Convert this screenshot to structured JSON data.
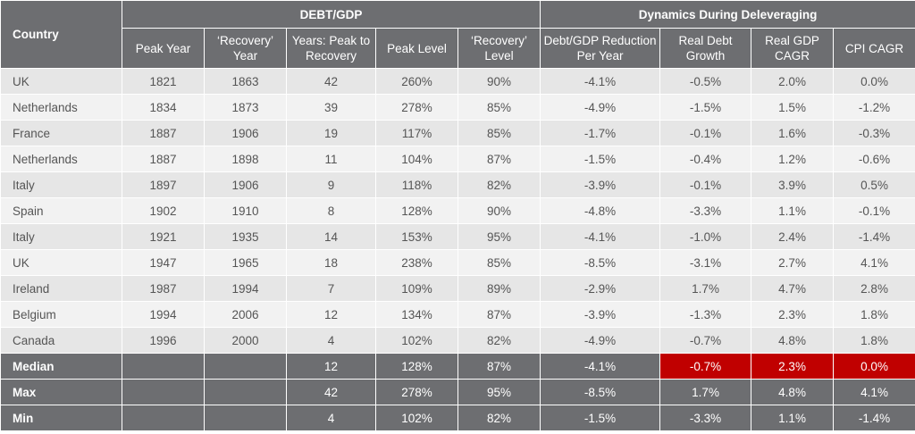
{
  "header": {
    "country": "Country",
    "debt_gdp": "DEBT/GDP",
    "dynamics": "Dynamics During Deleveraging",
    "peak_year": "Peak Year",
    "recovery_year": [
      "‘Recovery’",
      "Year"
    ],
    "years_peak_to_recovery": [
      "Years: Peak to",
      "Recovery"
    ],
    "peak_level": "Peak Level",
    "recovery_level": [
      "‘Recovery’",
      "Level"
    ],
    "debt_gdp_reduction": [
      "Debt/GDP Reduction",
      "Per Year"
    ],
    "real_debt_growth": [
      "Real Debt",
      "Growth"
    ],
    "real_gdp_cagr": [
      "Real GDP",
      "CAGR"
    ],
    "cpi_cagr": "CPI CAGR"
  },
  "rows": [
    [
      "UK",
      "1821",
      "1863",
      "42",
      "260%",
      "90%",
      "-4.1%",
      "-0.5%",
      "2.0%",
      "0.0%"
    ],
    [
      "Netherlands",
      "1834",
      "1873",
      "39",
      "278%",
      "85%",
      "-4.9%",
      "-1.5%",
      "1.5%",
      "-1.2%"
    ],
    [
      "France",
      "1887",
      "1906",
      "19",
      "117%",
      "85%",
      "-1.7%",
      "-0.1%",
      "1.6%",
      "-0.3%"
    ],
    [
      "Netherlands",
      "1887",
      "1898",
      "11",
      "104%",
      "87%",
      "-1.5%",
      "-0.4%",
      "1.2%",
      "-0.6%"
    ],
    [
      "Italy",
      "1897",
      "1906",
      "9",
      "118%",
      "82%",
      "-3.9%",
      "-0.1%",
      "3.9%",
      "0.5%"
    ],
    [
      "Spain",
      "1902",
      "1910",
      "8",
      "128%",
      "90%",
      "-4.8%",
      "-3.3%",
      "1.1%",
      "-0.1%"
    ],
    [
      "Italy",
      "1921",
      "1935",
      "14",
      "153%",
      "95%",
      "-4.1%",
      "-1.0%",
      "2.4%",
      "-1.4%"
    ],
    [
      "UK",
      "1947",
      "1965",
      "18",
      "238%",
      "85%",
      "-8.5%",
      "-3.1%",
      "2.7%",
      "4.1%"
    ],
    [
      "Ireland",
      "1987",
      "1994",
      "7",
      "109%",
      "89%",
      "-2.9%",
      "1.7%",
      "4.7%",
      "2.8%"
    ],
    [
      "Belgium",
      "1994",
      "2006",
      "12",
      "134%",
      "87%",
      "-3.9%",
      "-1.3%",
      "2.3%",
      "1.8%"
    ],
    [
      "Canada",
      "1996",
      "2000",
      "4",
      "102%",
      "82%",
      "-4.9%",
      "-0.7%",
      "4.8%",
      "1.8%"
    ]
  ],
  "summary": [
    [
      "Median",
      "",
      "",
      "12",
      "128%",
      "87%",
      "-4.1%",
      "-0.7%",
      "2.3%",
      "0.0%"
    ],
    [
      "Max",
      "",
      "",
      "42",
      "278%",
      "95%",
      "-8.5%",
      "1.7%",
      "4.8%",
      "4.1%"
    ],
    [
      "Min",
      "",
      "",
      "4",
      "102%",
      "82%",
      "-1.5%",
      "-3.3%",
      "1.1%",
      "-1.4%"
    ]
  ],
  "colors": {
    "header_bg": "#6d6e71",
    "row_odd_bg": "#e6e6e6",
    "row_even_bg": "#f2f2f2",
    "highlight_bg": "#c00000"
  },
  "highlighted_cells": [
    "median-real-debt-growth",
    "median-real-gdp-cagr",
    "median-cpi-cagr"
  ]
}
